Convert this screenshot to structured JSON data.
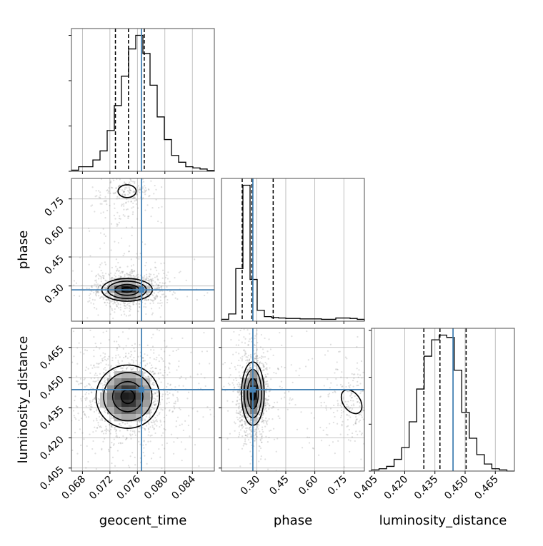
{
  "chart_data": {
    "type": "corner",
    "parameters": [
      "geocent_time",
      "phase",
      "luminosity_distance"
    ],
    "axis_labels": {
      "geocent_time": "geocent_time",
      "phase": "phase",
      "luminosity_distance": "luminosity_distance"
    },
    "ranges": {
      "geocent_time": [
        0.0664,
        0.0872
      ],
      "phase": [
        0.118,
        0.856
      ],
      "luminosity_distance": [
        0.4035,
        0.4745
      ]
    },
    "ticks": {
      "geocent_time": {
        "values": [
          0.068,
          0.072,
          0.076,
          0.08,
          0.084
        ],
        "labels": [
          "0.068",
          "0.072",
          "0.076",
          "0.080",
          "0.084"
        ]
      },
      "phase": {
        "values": [
          0.3,
          0.45,
          0.6,
          0.75
        ],
        "labels": [
          "0.30",
          "0.45",
          "0.60",
          "0.75"
        ]
      },
      "luminosity_distance": {
        "values": [
          0.405,
          0.42,
          0.435,
          0.45,
          0.465
        ],
        "labels": [
          "0.405",
          "0.420",
          "0.435",
          "0.450",
          "0.465"
        ]
      }
    },
    "truths": {
      "geocent_time": 0.0766,
      "phase": 0.28,
      "luminosity_distance": 0.444
    },
    "quantiles": {
      "geocent_time": [
        0.0728,
        0.0747,
        0.077
      ],
      "phase": [
        0.225,
        0.275,
        0.385
      ],
      "luminosity_distance": [
        0.4295,
        0.4375,
        0.4505
      ]
    },
    "histograms": {
      "geocent_time": {
        "edges_start": 0.0664,
        "edges_end": 0.0872,
        "counts": [
          0.5,
          2,
          2,
          5,
          9,
          18,
          29,
          42,
          54,
          60,
          52,
          38,
          24,
          14,
          7,
          4,
          2,
          1.5,
          1,
          0.4
        ]
      },
      "phase": {
        "edges_start": 0.118,
        "edges_end": 0.856,
        "counts": [
          2,
          8,
          58,
          150,
          46,
          12,
          5,
          4,
          3.5,
          3,
          3,
          2.5,
          2.5,
          2.5,
          2,
          2,
          3.5,
          3.5,
          3,
          2
        ]
      },
      "luminosity_distance": {
        "edges_start": 0.4035,
        "edges_end": 0.4745,
        "counts": [
          0.5,
          1,
          2,
          5,
          10,
          21,
          35,
          49,
          56,
          58,
          57,
          43,
          25,
          14,
          7,
          3,
          1,
          0.5,
          0
        ]
      }
    },
    "hist_yticks": {
      "geocent_time": [
        0,
        20,
        40,
        60
      ],
      "phase": [],
      "luminosity_distance": [
        0,
        20,
        40,
        60
      ]
    },
    "contours_2d": [
      {
        "x": "geocent_time",
        "y": "phase",
        "cores": [
          {
            "cx": 0.0745,
            "cy": 0.28,
            "sx": 0.00175,
            "sy": 0.028,
            "w": 1.0
          }
        ],
        "secondary": {
          "cx": 0.0745,
          "cy": 0.79,
          "sx": 0.0012,
          "sy": 0.03
        }
      },
      {
        "x": "geocent_time",
        "y": "luminosity_distance",
        "cores": [
          {
            "cx": 0.0746,
            "cy": 0.4405,
            "sx": 0.0022,
            "sy": 0.0075,
            "w": 1.0
          }
        ]
      },
      {
        "x": "phase",
        "y": "luminosity_distance",
        "cores": [
          {
            "cx": 0.28,
            "cy": 0.442,
            "sx": 0.028,
            "sy": 0.0075,
            "w": 1.0
          }
        ],
        "secondary": {
          "cx": 0.79,
          "cy": 0.438,
          "sx": 0.04,
          "sy": 0.006
        }
      }
    ],
    "colors": {
      "truth": "#4682b4",
      "contour": "#000000",
      "points": "#808080",
      "grid": "#b0b0b0"
    }
  }
}
